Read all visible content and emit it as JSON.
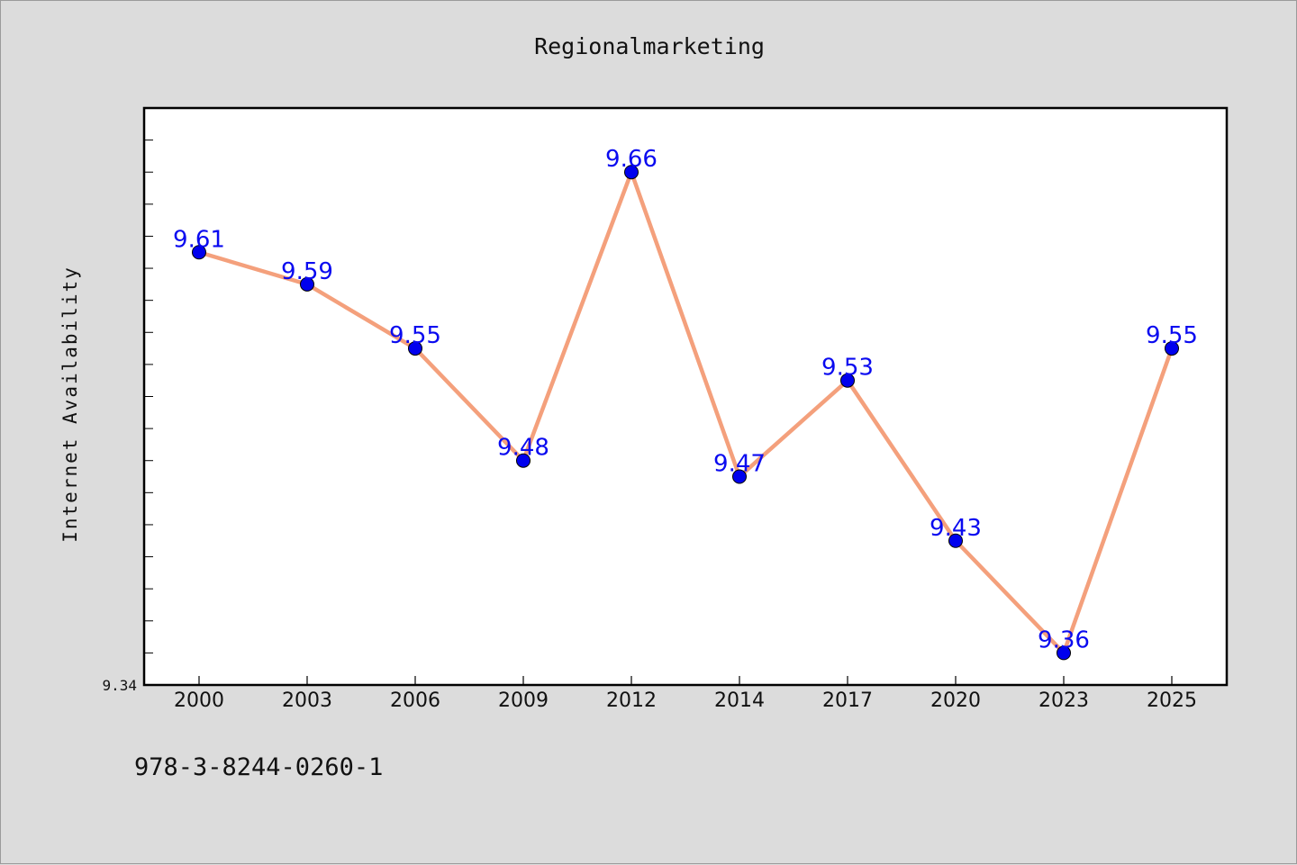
{
  "chart_data": {
    "type": "line",
    "title": "Regionalmarketing",
    "xlabel": "",
    "ylabel": "Internet Availability",
    "categories": [
      "2000",
      "2003",
      "2006",
      "2009",
      "2012",
      "2014",
      "2017",
      "2020",
      "2023",
      "2025"
    ],
    "series": [
      {
        "values": [
          9.61,
          9.59,
          9.55,
          9.48,
          9.66,
          9.47,
          9.53,
          9.43,
          9.36,
          9.55
        ],
        "labels": [
          "9.61",
          "9.59",
          "9.55",
          "9.48",
          "9.66",
          "9.47",
          "9.53",
          "9.43",
          "9.36",
          "9.55"
        ]
      }
    ],
    "ylim": [
      9.34,
      9.7
    ],
    "y_tick_labels": [
      "9.34"
    ],
    "grid": false,
    "line_color": "#f4a07c",
    "marker_color": "#0000ee",
    "label_color": "#0a0af0"
  },
  "footnote": "978-3-8244-0260-1"
}
